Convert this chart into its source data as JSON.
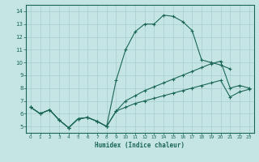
{
  "xlabel": "Humidex (Indice chaleur)",
  "xlim": [
    -0.5,
    23.5
  ],
  "ylim": [
    4.5,
    14.5
  ],
  "yticks": [
    5,
    6,
    7,
    8,
    9,
    10,
    11,
    12,
    13,
    14
  ],
  "xticks": [
    0,
    1,
    2,
    3,
    4,
    5,
    6,
    7,
    8,
    9,
    10,
    11,
    12,
    13,
    14,
    15,
    16,
    17,
    18,
    19,
    20,
    21,
    22,
    23
  ],
  "bg_color": "#c5e5e4",
  "grid_color": "#a8cccc",
  "line_color": "#1a6655",
  "curve1_x": [
    0,
    1,
    2,
    3,
    4,
    5,
    6,
    7,
    8,
    9,
    10,
    11,
    12,
    13,
    14,
    15,
    16,
    17,
    18,
    19,
    20,
    21
  ],
  "curve1_y": [
    6.5,
    6.0,
    6.3,
    5.5,
    4.9,
    5.6,
    5.7,
    5.4,
    5.0,
    8.6,
    11.0,
    12.4,
    13.0,
    13.0,
    13.7,
    13.6,
    13.2,
    12.5,
    10.2,
    10.0,
    9.8,
    9.5
  ],
  "curve2_x": [
    0,
    1,
    2,
    3,
    4,
    5,
    6,
    7,
    8,
    9,
    10,
    11,
    12,
    13,
    14,
    15,
    16,
    17,
    18,
    19,
    20,
    21,
    22,
    23
  ],
  "curve2_y": [
    6.5,
    6.0,
    6.3,
    5.5,
    4.9,
    5.6,
    5.7,
    5.4,
    5.0,
    6.2,
    7.0,
    7.4,
    7.8,
    8.1,
    8.4,
    8.7,
    9.0,
    9.3,
    9.6,
    9.9,
    10.1,
    8.0,
    8.2,
    8.0
  ],
  "curve3_x": [
    0,
    1,
    2,
    3,
    4,
    5,
    6,
    7,
    8,
    9,
    10,
    11,
    12,
    13,
    14,
    15,
    16,
    17,
    18,
    19,
    20,
    21,
    22,
    23
  ],
  "curve3_y": [
    6.5,
    6.0,
    6.3,
    5.5,
    4.9,
    5.6,
    5.7,
    5.4,
    5.0,
    6.2,
    6.5,
    6.8,
    7.0,
    7.2,
    7.4,
    7.6,
    7.8,
    8.0,
    8.2,
    8.4,
    8.6,
    7.3,
    7.7,
    7.9
  ]
}
